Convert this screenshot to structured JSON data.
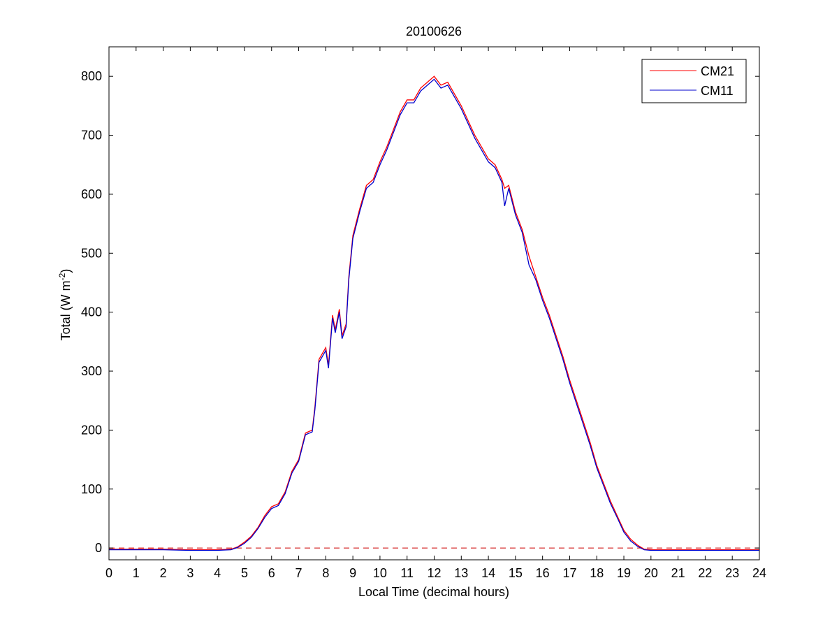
{
  "chart_data": {
    "type": "line",
    "title": "20100626",
    "xlabel": "Local Time (decimal hours)",
    "ylabel_main": "Total (W m",
    "ylabel_sup": "-2",
    "ylabel_close": ")",
    "xlim": [
      0,
      24
    ],
    "ylim": [
      -20,
      850
    ],
    "xticks": [
      0,
      1,
      2,
      3,
      4,
      5,
      6,
      7,
      8,
      9,
      10,
      11,
      12,
      13,
      14,
      15,
      16,
      17,
      18,
      19,
      20,
      21,
      22,
      23,
      24
    ],
    "yticks": [
      0,
      100,
      200,
      300,
      400,
      500,
      600,
      700,
      800
    ],
    "grid": false,
    "legend_position": "top-right",
    "reference_line": {
      "y": 0,
      "style": "dashed",
      "color": "#cc0000"
    },
    "series": [
      {
        "name": "CM21",
        "color": "#ff0000",
        "x": [
          0,
          1,
          2,
          3,
          4,
          4.5,
          4.75,
          5,
          5.25,
          5.5,
          5.75,
          6,
          6.25,
          6.5,
          6.75,
          7,
          7.25,
          7.5,
          7.6,
          7.75,
          8,
          8.1,
          8.25,
          8.35,
          8.5,
          8.6,
          8.75,
          8.85,
          9,
          9.25,
          9.5,
          9.75,
          10,
          10.25,
          10.5,
          10.75,
          11,
          11.25,
          11.5,
          11.75,
          12,
          12.25,
          12.5,
          12.75,
          13,
          13.25,
          13.5,
          13.75,
          14,
          14.25,
          14.5,
          14.6,
          14.75,
          15,
          15.25,
          15.5,
          15.75,
          16,
          16.25,
          16.5,
          16.75,
          17,
          17.25,
          17.5,
          17.75,
          18,
          18.25,
          18.5,
          18.75,
          19,
          19.25,
          19.5,
          19.75,
          20,
          21,
          22,
          23,
          24
        ],
        "y": [
          -2,
          -2,
          -2,
          -3,
          -3,
          -2,
          2,
          10,
          20,
          35,
          55,
          70,
          75,
          95,
          130,
          150,
          195,
          200,
          240,
          320,
          340,
          310,
          395,
          370,
          405,
          360,
          380,
          460,
          530,
          575,
          615,
          625,
          655,
          680,
          710,
          740,
          760,
          760,
          780,
          790,
          800,
          785,
          790,
          770,
          750,
          725,
          700,
          680,
          660,
          650,
          625,
          610,
          615,
          570,
          540,
          495,
          460,
          425,
          395,
          360,
          325,
          285,
          250,
          215,
          180,
          140,
          110,
          80,
          55,
          30,
          15,
          5,
          -2,
          -3,
          -3,
          -3,
          -3,
          -3
        ]
      },
      {
        "name": "CM11",
        "color": "#0000cc",
        "x": [
          0,
          1,
          2,
          3,
          4,
          4.5,
          4.75,
          5,
          5.25,
          5.5,
          5.75,
          6,
          6.25,
          6.5,
          6.75,
          7,
          7.25,
          7.5,
          7.6,
          7.75,
          8,
          8.1,
          8.25,
          8.35,
          8.5,
          8.6,
          8.75,
          8.85,
          9,
          9.25,
          9.5,
          9.75,
          10,
          10.25,
          10.5,
          10.75,
          11,
          11.25,
          11.5,
          11.75,
          12,
          12.25,
          12.5,
          12.75,
          13,
          13.25,
          13.5,
          13.75,
          14,
          14.25,
          14.5,
          14.6,
          14.75,
          15,
          15.25,
          15.5,
          15.75,
          16,
          16.25,
          16.5,
          16.75,
          17,
          17.25,
          17.5,
          17.75,
          18,
          18.25,
          18.5,
          18.75,
          19,
          19.25,
          19.5,
          19.75,
          20,
          21,
          22,
          23,
          24
        ],
        "y": [
          -3,
          -3,
          -3,
          -4,
          -4,
          -3,
          1,
          8,
          18,
          33,
          52,
          67,
          72,
          92,
          127,
          147,
          192,
          197,
          235,
          315,
          335,
          305,
          390,
          365,
          400,
          355,
          375,
          455,
          525,
          570,
          610,
          620,
          650,
          675,
          705,
          735,
          755,
          755,
          775,
          785,
          795,
          780,
          785,
          765,
          745,
          720,
          695,
          675,
          655,
          645,
          620,
          580,
          610,
          565,
          535,
          480,
          455,
          420,
          390,
          355,
          320,
          280,
          245,
          210,
          175,
          136,
          106,
          76,
          52,
          27,
          12,
          3,
          -3,
          -4,
          -4,
          -4,
          -4,
          -4
        ]
      }
    ]
  }
}
